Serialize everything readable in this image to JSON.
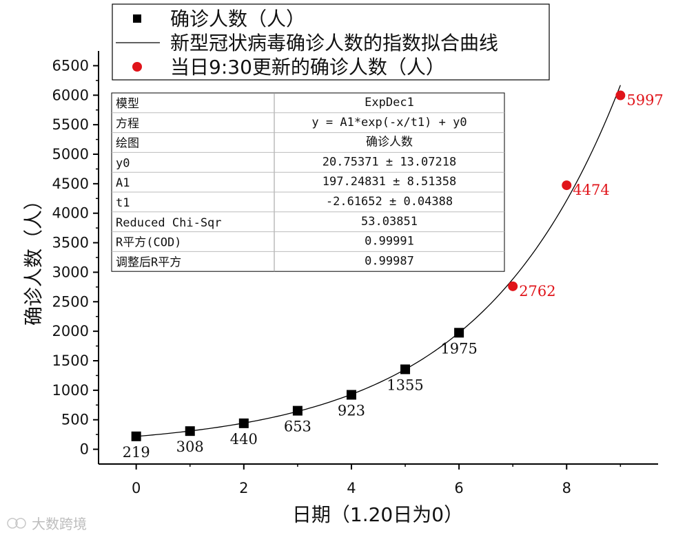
{
  "chart_data": {
    "type": "scatter",
    "xlabel": "日期（1.20日为0）",
    "ylabel": "确诊人数（人）",
    "xlim": [
      -0.7,
      9.7
    ],
    "ylim": [
      -250,
      6750
    ],
    "x_ticks": [
      0,
      2,
      4,
      6,
      8
    ],
    "y_ticks": [
      0,
      500,
      1000,
      1500,
      2000,
      2500,
      3000,
      3500,
      4000,
      4500,
      5000,
      5500,
      6000,
      6500
    ],
    "legend_position": "top",
    "legend": [
      {
        "label": "确诊人数（人）",
        "marker": "square",
        "color": "#000000"
      },
      {
        "label": "新型冠状病毒确诊人数的指数拟合曲线",
        "marker": "line",
        "color": "#000000"
      },
      {
        "label": "当日9:30更新的确诊人数（人）",
        "marker": "circle",
        "color": "#e0141a"
      }
    ],
    "series": [
      {
        "name": "确诊人数（人）",
        "marker": "square",
        "color": "#000000",
        "x": [
          0,
          1,
          2,
          3,
          4,
          5,
          6
        ],
        "y": [
          219,
          308,
          440,
          653,
          923,
          1355,
          1975
        ],
        "labels": [
          "219",
          "308",
          "440",
          "653",
          "923",
          "1355",
          "1975"
        ]
      },
      {
        "name": "当日9:30更新的确诊人数（人）",
        "marker": "circle",
        "color": "#e0141a",
        "x": [
          7,
          8,
          9
        ],
        "y": [
          2762,
          4474,
          5997
        ],
        "labels": [
          "2762",
          "4474",
          "5997"
        ]
      }
    ],
    "fit_curve": {
      "name": "新型冠状病毒确诊人数的指数拟合曲线",
      "model": "ExpDec1",
      "equation": "y = A1*exp(-x/t1) + y0",
      "y0": 20.75371,
      "A1": 197.24831,
      "t1": -2.61652,
      "x_range": [
        0,
        9
      ],
      "color": "#000000"
    },
    "fit_table": [
      [
        "模型",
        "ExpDec1"
      ],
      [
        "方程",
        "y = A1*exp(-x/t1) + y0"
      ],
      [
        "绘图",
        "确诊人数"
      ],
      [
        "y0",
        "20.75371 ± 13.07218"
      ],
      [
        "A1",
        "197.24831 ± 8.51358"
      ],
      [
        "t1",
        "-2.61652 ± 0.04388"
      ],
      [
        "Reduced Chi-Sqr",
        "53.03851"
      ],
      [
        "R平方(COD)",
        "0.99991"
      ],
      [
        "调整后R平方",
        "0.99987"
      ]
    ]
  },
  "watermark": "大数跨境"
}
